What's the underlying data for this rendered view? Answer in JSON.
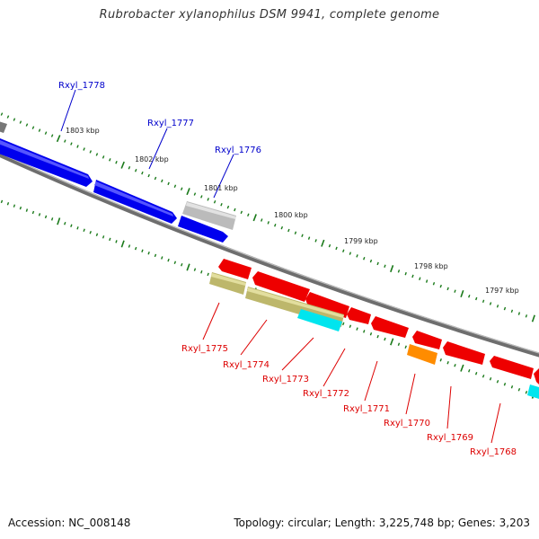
{
  "title": "Rubrobacter xylanophilus DSM 9941, complete genome",
  "footer": {
    "accession": "Accession: NC_008148",
    "topology": "Topology: circular; Length: 3,225,748 bp; Genes: 3,203"
  },
  "scale_labels": [
    "1803 kbp",
    "1802 kbp",
    "1801 kbp",
    "1800 kbp",
    "1799 kbp",
    "1798 kbp",
    "1797 kbp"
  ],
  "colors": {
    "forward_label": "#0000cc",
    "reverse_label": "#dd0000",
    "tick": "#1a7a1a",
    "backbone": "#808080",
    "blue_gene": "#0000ee",
    "red_gene": "#ee0000",
    "grey_gene": "#bbbbbb",
    "olive_gene": "#bdb76b",
    "cyan_gene": "#00e5ee",
    "orange_gene": "#ff8c00"
  },
  "forward_genes": [
    {
      "label": "Rxyl_1778",
      "color": "blue"
    },
    {
      "label": "Rxyl_1777",
      "color": "blue"
    },
    {
      "label": "Rxyl_1776",
      "color": "grey"
    }
  ],
  "reverse_genes": [
    {
      "label": "Rxyl_1775"
    },
    {
      "label": "Rxyl_1774"
    },
    {
      "label": "Rxyl_1773"
    },
    {
      "label": "Rxyl_1772"
    },
    {
      "label": "Rxyl_1771"
    },
    {
      "label": "Rxyl_1770"
    },
    {
      "label": "Rxyl_1769"
    },
    {
      "label": "Rxyl_1768"
    }
  ]
}
